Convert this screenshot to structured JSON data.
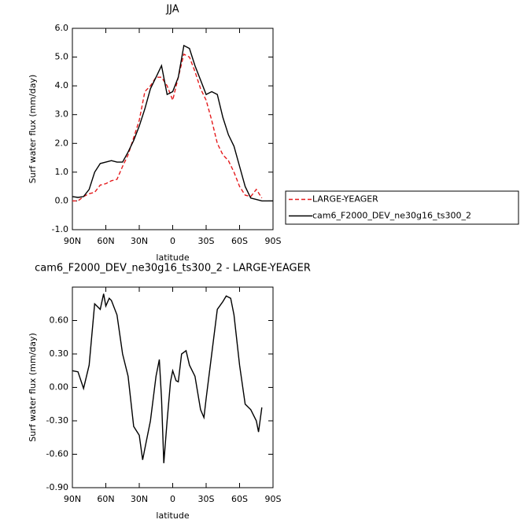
{
  "chart_data": [
    {
      "type": "line",
      "title": "JJA",
      "xlabel": "latitude",
      "ylabel": "Surf water flux (mm/day)",
      "x": [
        90,
        85,
        80,
        75,
        70,
        65,
        60,
        55,
        50,
        45,
        40,
        35,
        30,
        25,
        20,
        15,
        10,
        5,
        0,
        -5,
        -10,
        -15,
        -20,
        -25,
        -30,
        -35,
        -40,
        -45,
        -50,
        -55,
        -60,
        -65,
        -70,
        -75,
        -80,
        -85,
        -90
      ],
      "series": [
        {
          "name": "LARGE-YEAGER",
          "color": "#e41a1c",
          "dash": true,
          "values": [
            0.0,
            0.0,
            0.15,
            0.25,
            0.3,
            0.55,
            0.6,
            0.7,
            0.75,
            1.2,
            1.6,
            2.2,
            2.8,
            3.8,
            4.0,
            4.3,
            4.3,
            4.0,
            3.5,
            4.3,
            5.1,
            5.0,
            4.5,
            3.9,
            3.5,
            2.8,
            2.0,
            1.6,
            1.4,
            1.0,
            0.5,
            0.2,
            0.15,
            0.4,
            0.1,
            null,
            null
          ]
        },
        {
          "name": "cam6_F2000_DEV_ne30g16_ts300_2",
          "color": "#000000",
          "dash": false,
          "values": [
            0.15,
            0.12,
            0.15,
            0.4,
            1.0,
            1.3,
            1.35,
            1.4,
            1.35,
            1.35,
            1.7,
            2.1,
            2.6,
            3.2,
            3.9,
            4.3,
            4.7,
            3.7,
            3.8,
            4.3,
            5.4,
            5.3,
            4.7,
            4.2,
            3.7,
            3.8,
            3.7,
            2.9,
            2.3,
            1.9,
            1.2,
            0.5,
            0.1,
            0.05,
            0.0,
            0.0,
            0.0
          ]
        }
      ],
      "xlim": [
        90,
        -90
      ],
      "xticks": [
        {
          "value": 90,
          "label": "90N"
        },
        {
          "value": 60,
          "label": "60N"
        },
        {
          "value": 30,
          "label": "30N"
        },
        0,
        {
          "value": -30,
          "label": "30S"
        },
        {
          "value": -60,
          "label": "60S"
        },
        {
          "value": -90,
          "label": "90S"
        }
      ],
      "ylim": [
        -1,
        6
      ],
      "yticks": [
        {
          "value": -1,
          "label": "-1.0"
        },
        {
          "value": 0,
          "label": "0.0"
        },
        {
          "value": 1,
          "label": "1.0"
        },
        {
          "value": 2,
          "label": "2.0"
        },
        {
          "value": 3,
          "label": "3.0"
        },
        {
          "value": 4,
          "label": "4.0"
        },
        {
          "value": 5,
          "label": "5.0"
        },
        {
          "value": 6,
          "label": "6.0"
        }
      ],
      "legend": "right"
    },
    {
      "type": "line",
      "title": "cam6_F2000_DEV_ne30g16_ts300_2 - LARGE-YEAGER",
      "xlabel": "latitude",
      "ylabel": "Surf water flux (mm/day)",
      "x": [
        90,
        85,
        80,
        75,
        70,
        65,
        62,
        60,
        57,
        55,
        50,
        45,
        40,
        35,
        30,
        27,
        25,
        20,
        15,
        12,
        10,
        8,
        5,
        2,
        0,
        -3,
        -5,
        -8,
        -12,
        -15,
        -20,
        -25,
        -28,
        -30,
        -35,
        -40,
        -45,
        -48,
        -52,
        -55,
        -60,
        -65,
        -70,
        -75,
        -77,
        -80
      ],
      "values": [
        0.15,
        0.14,
        -0.01,
        0.2,
        0.75,
        0.7,
        0.84,
        0.73,
        0.8,
        0.78,
        0.65,
        0.3,
        0.1,
        -0.35,
        -0.43,
        -0.65,
        -0.55,
        -0.3,
        0.1,
        0.25,
        -0.1,
        -0.68,
        -0.3,
        0.05,
        0.15,
        0.06,
        0.05,
        0.3,
        0.33,
        0.2,
        0.1,
        -0.2,
        -0.27,
        -0.1,
        0.3,
        0.7,
        0.77,
        0.82,
        0.8,
        0.65,
        0.2,
        -0.15,
        -0.2,
        -0.3,
        -0.4,
        -0.18
      ],
      "color": "#000000",
      "xlim": [
        90,
        -90
      ],
      "xticks": [
        {
          "value": 90,
          "label": "90N"
        },
        {
          "value": 60,
          "label": "60N"
        },
        {
          "value": 30,
          "label": "30N"
        },
        0,
        {
          "value": -30,
          "label": "30S"
        },
        {
          "value": -60,
          "label": "60S"
        },
        {
          "value": -90,
          "label": "90S"
        }
      ],
      "ylim": [
        -0.9,
        0.9
      ],
      "yticks": [
        {
          "value": -0.9,
          "label": "-0.90"
        },
        {
          "value": -0.6,
          "label": "-0.60"
        },
        {
          "value": -0.3,
          "label": "-0.30"
        },
        {
          "value": 0,
          "label": "0.00"
        },
        {
          "value": 0.3,
          "label": "0.30"
        },
        {
          "value": 0.6,
          "label": "0.60"
        }
      ]
    }
  ]
}
